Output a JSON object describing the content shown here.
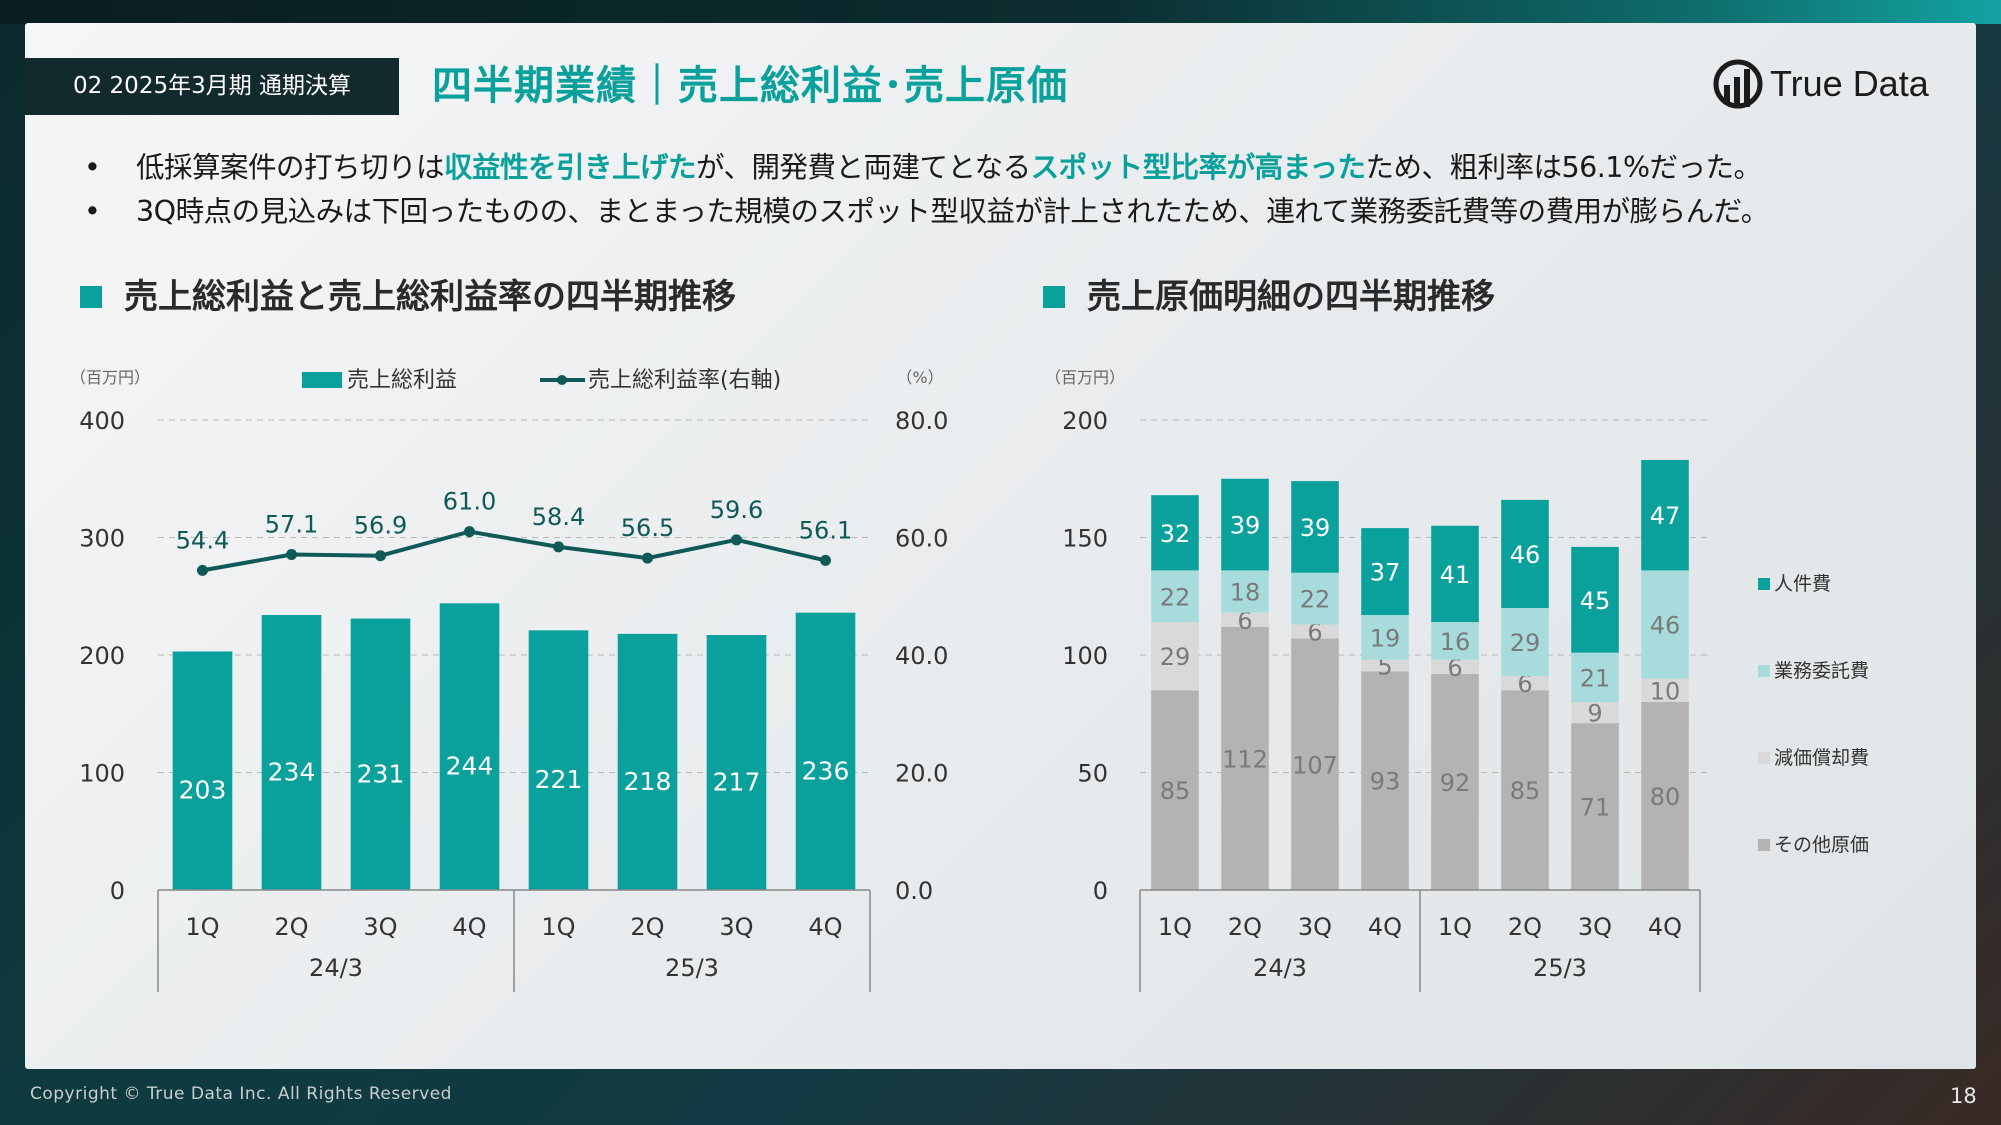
{
  "header": {
    "tag": "02 2025年3月期 通期決算",
    "title": "四半期業績｜売上総利益･売上原価",
    "logo_text": "True Data"
  },
  "bullets": [
    {
      "parts": [
        {
          "text": "低採算案件の打ち切りは",
          "hl": false
        },
        {
          "text": "収益性を引き上げた",
          "hl": true
        },
        {
          "text": "が、開発費と両建てとなる",
          "hl": false
        },
        {
          "text": "スポット型比率が高まった",
          "hl": true
        },
        {
          "text": "ため、粗利率は56.1%だった。",
          "hl": false
        }
      ]
    },
    {
      "parts": [
        {
          "text": "3Q時点の見込みは下回ったものの、まとまった規模のスポット型収益が計上されたため、連れて業務委託費等の費用が膨らんだ。",
          "hl": false
        }
      ]
    }
  ],
  "sections": {
    "left_title": "売上総利益と売上総利益率の四半期推移",
    "right_title": "売上原価明細の四半期推移"
  },
  "footer": {
    "copyright": "Copyright © True Data Inc. All Rights Reserved",
    "page": "18"
  },
  "colors": {
    "teal": "#0aa19c",
    "dark_teal": "#0f5a57",
    "light_teal": "#a8dcdc",
    "light_gray": "#d9d9d9",
    "gray": "#b3b3b3"
  },
  "chart_data": [
    {
      "type": "bar",
      "combo": "bar+line",
      "categories": [
        "1Q",
        "2Q",
        "3Q",
        "4Q",
        "1Q",
        "2Q",
        "3Q",
        "4Q"
      ],
      "groups": [
        {
          "label": "24/3",
          "span": 4
        },
        {
          "label": "25/3",
          "span": 4
        }
      ],
      "y_unit": "（百万円）",
      "y2_unit": "（%）",
      "ylim": [
        0,
        400
      ],
      "yticks": [
        "0",
        "100",
        "200",
        "300",
        "400"
      ],
      "y2lim": [
        0,
        80
      ],
      "y2ticks": [
        "0.0",
        "20.0",
        "40.0",
        "60.0",
        "80.0"
      ],
      "grid": true,
      "legend_position": "top",
      "series": [
        {
          "name": "売上総利益",
          "kind": "bar",
          "color": "#0aa19c",
          "values": [
            203,
            234,
            231,
            244,
            221,
            218,
            217,
            236
          ]
        },
        {
          "name": "売上総利益率(右軸)",
          "kind": "line",
          "axis": "right",
          "color": "#0f5a57",
          "values": [
            54.4,
            57.1,
            56.9,
            61.0,
            58.4,
            56.5,
            59.6,
            56.1
          ],
          "labels": [
            "54.4",
            "57.1",
            "56.9",
            "61.0",
            "58.4",
            "56.5",
            "59.6",
            "56.1"
          ]
        }
      ]
    },
    {
      "type": "bar",
      "stacked": true,
      "categories": [
        "1Q",
        "2Q",
        "3Q",
        "4Q",
        "1Q",
        "2Q",
        "3Q",
        "4Q"
      ],
      "groups": [
        {
          "label": "24/3",
          "span": 4
        },
        {
          "label": "25/3",
          "span": 4
        }
      ],
      "y_unit": "（百万円）",
      "ylim": [
        0,
        200
      ],
      "yticks": [
        "0",
        "50",
        "100",
        "150",
        "200"
      ],
      "grid": true,
      "legend_position": "right",
      "series": [
        {
          "name": "その他原価",
          "color": "#b3b3b3",
          "label_color": "#7a7a7a",
          "values": [
            85,
            112,
            107,
            93,
            92,
            85,
            71,
            80
          ]
        },
        {
          "name": "減価償却費",
          "color": "#d9d9d9",
          "label_color": "#7a7a7a",
          "values": [
            29,
            6,
            6,
            5,
            6,
            6,
            9,
            10
          ]
        },
        {
          "name": "業務委託費",
          "color": "#a8dcdc",
          "label_color": "#7a7a7a",
          "values": [
            22,
            18,
            22,
            19,
            16,
            29,
            21,
            46
          ]
        },
        {
          "name": "人件費",
          "color": "#0aa19c",
          "label_color": "#ffffff",
          "values": [
            32,
            39,
            39,
            37,
            41,
            46,
            45,
            47
          ]
        }
      ],
      "legend_order": [
        "人件費",
        "業務委託費",
        "減価償却費",
        "その他原価"
      ]
    }
  ]
}
